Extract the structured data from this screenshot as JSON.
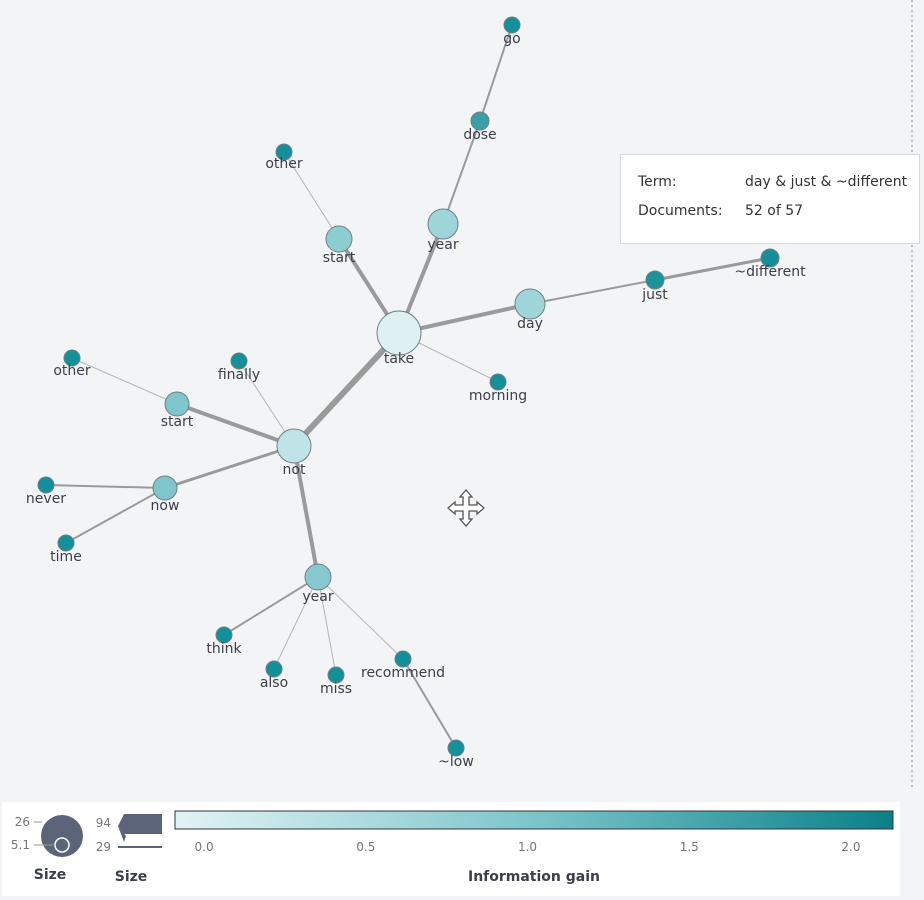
{
  "nodes": [
    {
      "label": "take"
    },
    {
      "label": "year"
    },
    {
      "label": "dose"
    },
    {
      "label": "go"
    },
    {
      "label": "start"
    },
    {
      "label": "other"
    },
    {
      "label": "day"
    },
    {
      "label": "just"
    },
    {
      "label": "~different"
    },
    {
      "label": "morning"
    },
    {
      "label": "not"
    },
    {
      "label": "finally"
    },
    {
      "label": "start"
    },
    {
      "label": "other"
    },
    {
      "label": "now"
    },
    {
      "label": "never"
    },
    {
      "label": "time"
    },
    {
      "label": "year"
    },
    {
      "label": "think"
    },
    {
      "label": "also"
    },
    {
      "label": "miss"
    },
    {
      "label": "recommend"
    },
    {
      "label": "~low"
    }
  ],
  "tooltip": {
    "term_label": "Term:",
    "term": "day & just & ~different",
    "documents_label": "Documents:",
    "documents": "52 of 57"
  },
  "legend": {
    "node_size": {
      "max": "26",
      "min": "5.1",
      "title": "Size"
    },
    "link_size": {
      "max": "94",
      "min": "29",
      "title": "Size"
    },
    "color_scale": {
      "title": "Information gain",
      "range": [
        -0.09,
        2.13
      ],
      "ticks": [
        {
          "value": 0,
          "label": "0.0"
        },
        {
          "value": 0.5,
          "label": "0.5"
        },
        {
          "value": 1,
          "label": "1.0"
        },
        {
          "value": 1.5,
          "label": "1.5"
        },
        {
          "value": 2,
          "label": "2.0"
        }
      ]
    }
  }
}
